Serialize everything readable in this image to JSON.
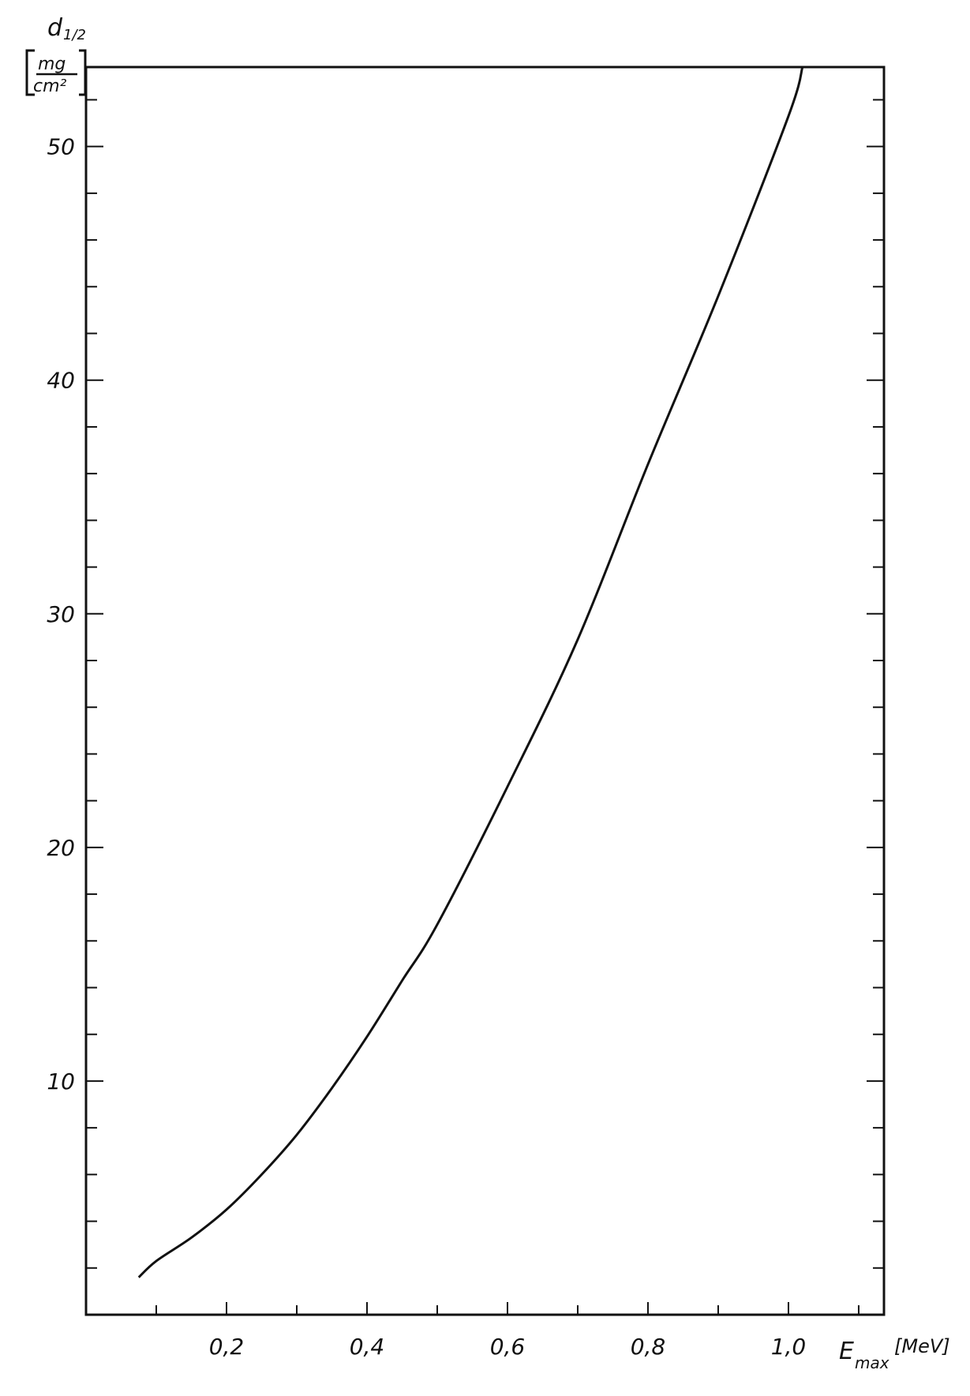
{
  "chart_data": {
    "type": "line",
    "title": "",
    "xlabel": "E",
    "xlabel_sub": "max",
    "xunit": "[MeV]",
    "ylabel": "d",
    "ylabel_sub": "1/2",
    "yunit_num": "mg",
    "yunit_den": "cm²",
    "xlim": [
      0,
      1.136
    ],
    "ylim": [
      0,
      53.4
    ],
    "x_ticks": [
      0.2,
      0.4,
      0.6,
      0.8,
      1.0
    ],
    "x_tick_labels": [
      "0,2",
      "0,4",
      "0,6",
      "0,8",
      "1,0"
    ],
    "y_ticks": [
      10,
      20,
      30,
      40,
      50
    ],
    "y_tick_labels": [
      "10",
      "20",
      "30",
      "40",
      "50"
    ],
    "grid": false,
    "line_color": "#111111",
    "series": [
      {
        "x": [
          0.075,
          0.1,
          0.15,
          0.2,
          0.25,
          0.3,
          0.35,
          0.4,
          0.45,
          0.5,
          0.6,
          0.7,
          0.8,
          0.9,
          1.0,
          1.02
        ],
        "y": [
          1.6,
          2.3,
          3.3,
          4.5,
          6.0,
          7.7,
          9.7,
          11.9,
          14.3,
          16.7,
          22.6,
          28.9,
          36.4,
          43.6,
          51.3,
          53.4
        ]
      }
    ]
  }
}
